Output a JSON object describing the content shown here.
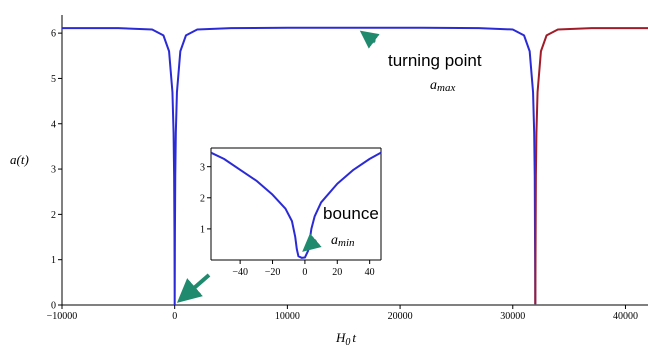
{
  "chart_data": [
    {
      "type": "line",
      "title": "",
      "xlabel": "H0 t",
      "xlabel_main": "H",
      "xlabel_sub": "0",
      "xlabel_tail": "t",
      "ylabel": "a(t)",
      "xlim": [
        -10000,
        42000
      ],
      "ylim": [
        0,
        6.4
      ],
      "x_ticks": [
        -10000,
        0,
        10000,
        20000,
        30000,
        40000
      ],
      "x_tick_labels": [
        "−10000",
        "0",
        "10000",
        "20000",
        "30000",
        "40000"
      ],
      "y_ticks": [
        0,
        1,
        2,
        3,
        4,
        5,
        6
      ],
      "y_tick_labels": [
        "0",
        "1",
        "2",
        "3",
        "4",
        "5",
        "6"
      ],
      "grid": false,
      "series": [
        {
          "color": "#2b2bd6",
          "x": [
            -10000,
            -5000,
            -2000,
            -1000,
            -500,
            -200,
            -100,
            -50,
            -20,
            0,
            20,
            50,
            100,
            200,
            500,
            1000,
            2000,
            5000,
            10000,
            16000,
            22000,
            27000,
            30000,
            31000,
            31500,
            31800,
            31900,
            31950,
            32000
          ],
          "y": [
            6.11,
            6.11,
            6.08,
            5.95,
            5.6,
            4.7,
            3.8,
            2.85,
            1.6,
            0.02,
            1.6,
            2.85,
            3.8,
            4.7,
            5.6,
            5.95,
            6.08,
            6.11,
            6.12,
            6.12,
            6.12,
            6.11,
            6.08,
            5.95,
            5.6,
            4.7,
            3.8,
            2.85,
            0.02
          ]
        },
        {
          "color": "#a01c28",
          "x": [
            32000,
            32050,
            32100,
            32200,
            32500,
            33000,
            34000,
            37000,
            42000
          ],
          "y": [
            0.02,
            2.85,
            3.8,
            4.7,
            5.6,
            5.95,
            6.08,
            6.11,
            6.11
          ]
        }
      ],
      "annotations": [
        {
          "text": "turning point",
          "sub_main": "a",
          "sub": "max",
          "arrow_color": "#1f8a6e"
        },
        {
          "arrow_color": "#1f8a6e"
        }
      ]
    },
    {
      "type": "line",
      "title": "",
      "xlim": [
        -58,
        47
      ],
      "ylim": [
        0,
        3.6
      ],
      "x_ticks": [
        -40,
        -20,
        0,
        20,
        40
      ],
      "x_tick_labels": [
        "−40",
        "−20",
        "0",
        "20",
        "40"
      ],
      "y_ticks": [
        1,
        2,
        3
      ],
      "y_tick_labels": [
        "1",
        "2",
        "3"
      ],
      "series": [
        {
          "color": "#2b2bd6",
          "x": [
            -58,
            -50,
            -40,
            -30,
            -20,
            -12,
            -8,
            -6,
            -5,
            -4,
            -2,
            0,
            2,
            4,
            6,
            10,
            20,
            30,
            40,
            47
          ],
          "y": [
            3.45,
            3.25,
            2.9,
            2.55,
            2.1,
            1.65,
            1.25,
            0.75,
            0.35,
            0.12,
            0.07,
            0.08,
            0.3,
            1.0,
            1.4,
            1.85,
            2.45,
            2.9,
            3.25,
            3.45
          ]
        }
      ],
      "annotations": [
        {
          "text": "bounce",
          "sub_main": "a",
          "sub": "min",
          "arrow_color": "#1f8a6e"
        }
      ]
    }
  ]
}
